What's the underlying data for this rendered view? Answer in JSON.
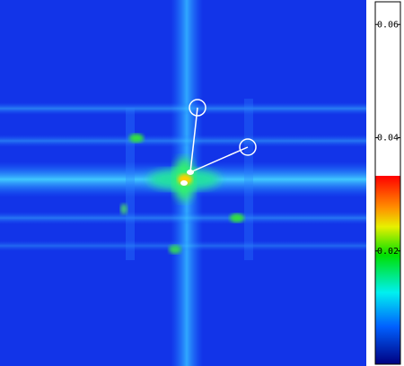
{
  "chart_data": {
    "type": "heatmap",
    "colorbar": {
      "ylim": [
        0,
        0.064
      ],
      "yticks": [
        0.02,
        0.04,
        0.06
      ]
    }
  }
}
